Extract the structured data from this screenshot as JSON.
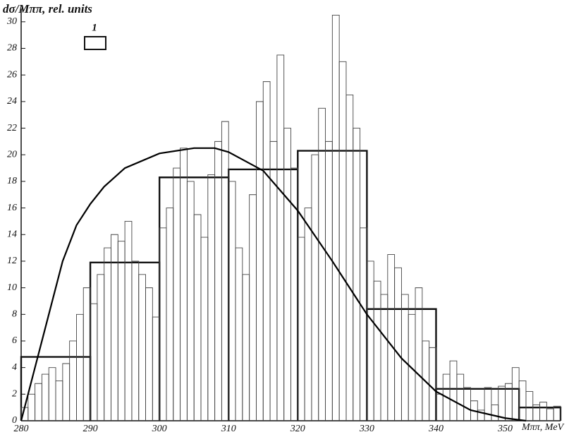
{
  "chart_data": {
    "type": "histogram",
    "y_label": "dσ/Mππ, rel. units",
    "x_label": "Mππ, MeV",
    "xlim": [
      280,
      358
    ],
    "ylim": [
      0,
      31
    ],
    "xticks": [
      280,
      290,
      300,
      310,
      320,
      330,
      340,
      350
    ],
    "yticks": [
      0,
      2,
      4,
      6,
      8,
      10,
      12,
      14,
      16,
      18,
      20,
      22,
      24,
      26,
      28,
      30
    ],
    "histograms": [
      {
        "name": "1",
        "color": "#111111",
        "bins": [
          280,
          290,
          300,
          310,
          320,
          330,
          340,
          352,
          358
        ],
        "values": [
          4.8,
          11.9,
          18.3,
          18.9,
          20.3,
          8.4,
          2.4,
          1.0
        ]
      },
      {
        "color": "#444444",
        "bins": [
          280,
          281,
          282,
          283,
          284,
          285,
          286,
          287,
          288,
          289,
          290,
          291,
          292,
          293,
          294,
          295,
          296,
          297,
          298,
          299,
          300,
          301,
          302,
          303,
          304,
          305,
          306,
          307,
          308,
          309,
          310,
          311,
          312,
          313,
          314,
          315,
          316,
          317,
          318,
          319,
          320,
          321,
          322,
          323,
          324,
          325,
          326,
          327,
          328,
          329,
          330,
          331,
          332,
          333,
          334,
          335,
          336,
          337,
          338,
          339,
          340,
          341,
          342,
          343,
          344,
          345,
          346,
          347,
          348,
          349,
          350,
          351,
          352,
          353,
          354,
          355,
          356,
          357,
          358
        ],
        "values": [
          1,
          2,
          2.8,
          3.5,
          4,
          3,
          4.3,
          6,
          8,
          10,
          8.8,
          11,
          13,
          14,
          13.5,
          15,
          12,
          11,
          10,
          7.8,
          14.5,
          16,
          19,
          20.5,
          18,
          15.5,
          13.8,
          18.5,
          21,
          22.5,
          18,
          13,
          11,
          17,
          24,
          25.5,
          21,
          27.5,
          22,
          19,
          13.8,
          16,
          20,
          23.5,
          21,
          30.5,
          27,
          24.5,
          22,
          14.5,
          12,
          10.5,
          9.5,
          12.5,
          11.5,
          9.5,
          8,
          10,
          6,
          5.5,
          2,
          3.5,
          4.5,
          3.5,
          2.5,
          1.5,
          0.8,
          2.5,
          1.2,
          2.6,
          2.8,
          4,
          3,
          2.2,
          1.2,
          1.4,
          0.9,
          1.1
        ]
      }
    ],
    "curve": {
      "color": "#000000",
      "x": [
        280,
        282,
        284,
        286,
        288,
        290,
        292,
        295,
        300,
        305,
        308,
        310,
        315,
        320,
        325,
        330,
        335,
        340,
        345,
        350,
        353
      ],
      "values": [
        0,
        4,
        8,
        12,
        14.7,
        16.3,
        17.6,
        19,
        20.1,
        20.5,
        20.5,
        20.2,
        18.8,
        15.8,
        12,
        8,
        4.7,
        2.2,
        0.8,
        0.2,
        0
      ]
    }
  }
}
